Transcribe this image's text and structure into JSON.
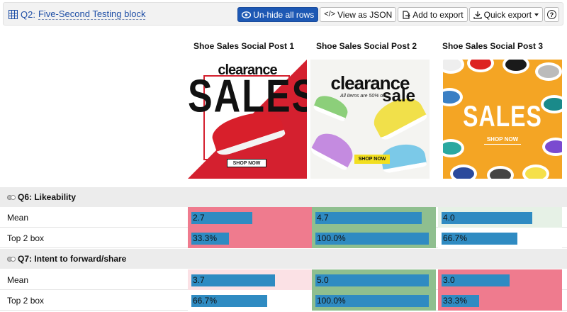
{
  "header": {
    "question_id": "Q2:",
    "title": "Five-Second Testing block",
    "buttons": {
      "unhide": "Un-hide all rows",
      "view_json": "View as JSON",
      "add_export": "Add to export",
      "quick_export": "Quick export",
      "help": "?"
    }
  },
  "columns": [
    {
      "title": "Shoe Sales Social Post 1",
      "image": {
        "headline": "clearance",
        "big": "SALES",
        "cta": "SHOP NOW"
      }
    },
    {
      "title": "Shoe Sales Social Post 2",
      "image": {
        "headline": "clearance",
        "big": "sale",
        "sub": "All items are 50% off",
        "cta": "SHOP NOW"
      }
    },
    {
      "title": "Shoe Sales Social Post 3",
      "image": {
        "big": "SALES",
        "cta": "SHOP NOW"
      }
    }
  ],
  "sections": [
    {
      "title": "Q6: Likeability",
      "rows": [
        {
          "label": "Mean",
          "max": 5,
          "cells": [
            {
              "text": "2.7",
              "value": 2.7,
              "bg": "#ef7b8e"
            },
            {
              "text": "4.7",
              "value": 4.7,
              "bg": "#8fbf8f"
            },
            {
              "text": "4.0",
              "value": 4.0,
              "bg": "#e6f1e6"
            }
          ]
        },
        {
          "label": "Top 2 box",
          "max": 100,
          "cells": [
            {
              "text": "33.3%",
              "value": 33.3,
              "bg": "#ef7b8e"
            },
            {
              "text": "100.0%",
              "value": 100.0,
              "bg": "#8fbf8f"
            },
            {
              "text": "66.7%",
              "value": 66.7,
              "bg": "#ffffff"
            }
          ]
        }
      ]
    },
    {
      "title": "Q7: Intent to forward/share",
      "rows": [
        {
          "label": "Mean",
          "max": 5,
          "cells": [
            {
              "text": "3.7",
              "value": 3.7,
              "bg": "#fbe1e5"
            },
            {
              "text": "5.0",
              "value": 5.0,
              "bg": "#8fbf8f"
            },
            {
              "text": "3.0",
              "value": 3.0,
              "bg": "#ef7b8e"
            }
          ]
        },
        {
          "label": "Top 2 box",
          "max": 100,
          "cells": [
            {
              "text": "66.7%",
              "value": 66.7,
              "bg": "#ffffff"
            },
            {
              "text": "100.0%",
              "value": 100.0,
              "bg": "#8fbf8f"
            },
            {
              "text": "33.3%",
              "value": 33.3,
              "bg": "#ef7b8e"
            }
          ]
        }
      ]
    }
  ],
  "colors": {
    "bar": "#2f8bc2",
    "accent": "#1d58b4"
  }
}
